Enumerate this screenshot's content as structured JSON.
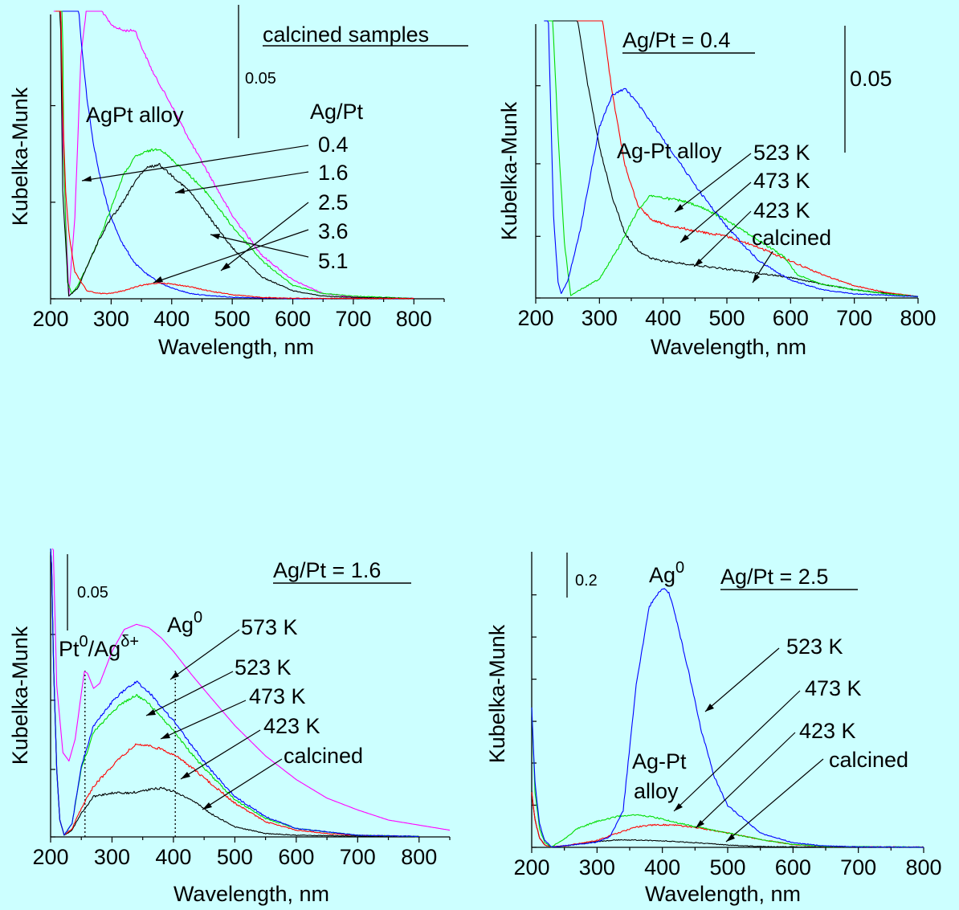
{
  "figure": {
    "background": "#ccffff",
    "series_colors": {
      "black": "#000000",
      "red": "#ff0000",
      "green": "#00dd00",
      "blue": "#0000ff",
      "magenta": "#ff00ff"
    }
  },
  "chart_data": [
    {
      "type": "line",
      "xlabel": "Wavelength, nm",
      "ylabel": "Kubelka-Munk",
      "xlim": [
        200,
        850
      ],
      "xticks": [
        200,
        300,
        400,
        500,
        600,
        700,
        800
      ],
      "y_scale_bar": "0.05",
      "legend_title": "Ag/Pt",
      "annotations": {
        "heading": "calcined samples",
        "feature": "AgPt alloy"
      },
      "series": [
        {
          "name": "0.4",
          "color": "#ff00ff",
          "x": [
            205,
            212,
            220,
            230,
            240,
            250,
            260,
            270,
            280,
            300,
            320,
            340,
            350,
            370,
            400,
            430,
            460,
            500,
            550,
            600,
            650,
            700,
            750,
            800
          ],
          "y": [
            0.3,
            0.19,
            0.06,
            0.001,
            0.03,
            0.09,
            0.11,
            0.112,
            0.109,
            0.102,
            0.1,
            0.1,
            0.094,
            0.084,
            0.072,
            0.059,
            0.047,
            0.031,
            0.016,
            0.007,
            0.002,
            0.0007,
            0.0003,
            0.0001
          ]
        },
        {
          "name": "1.6",
          "color": "#0000ff",
          "x": [
            210,
            220,
            230,
            240,
            250,
            260,
            270,
            280,
            290,
            300,
            320,
            340,
            360,
            380,
            400,
            430,
            460,
            500,
            550,
            600,
            700,
            800
          ],
          "y": [
            0.3,
            0.24,
            0.175,
            0.128,
            0.097,
            0.075,
            0.059,
            0.047,
            0.038,
            0.03,
            0.02,
            0.013,
            0.009,
            0.006,
            0.004,
            0.002,
            0.0012,
            0.0006,
            0.0003,
            0.0001,
            0.0001,
            0.0001
          ]
        },
        {
          "name": "2.5",
          "color": "#00dd00",
          "x": [
            212,
            217,
            222,
            228,
            235,
            245,
            260,
            280,
            300,
            320,
            340,
            360,
            380,
            400,
            430,
            460,
            500,
            550,
            600,
            650,
            700,
            800
          ],
          "y": [
            0.3,
            0.18,
            0.05,
            0.006,
            0.002,
            0.005,
            0.012,
            0.022,
            0.034,
            0.046,
            0.053,
            0.055,
            0.056,
            0.052,
            0.046,
            0.039,
            0.027,
            0.014,
            0.005,
            0.002,
            0.001,
            0.0001
          ]
        },
        {
          "name": "3.6",
          "color": "#000000",
          "x": [
            210,
            215,
            220,
            230,
            245,
            260,
            280,
            300,
            320,
            340,
            360,
            380,
            400,
            430,
            460,
            500,
            550,
            600,
            650,
            700,
            800
          ],
          "y": [
            0.25,
            0.13,
            0.04,
            0.001,
            0.004,
            0.012,
            0.022,
            0.03,
            0.036,
            0.044,
            0.049,
            0.05,
            0.046,
            0.04,
            0.031,
            0.019,
            0.008,
            0.003,
            0.001,
            0.0005,
            0.0001
          ]
        },
        {
          "name": "5.1",
          "color": "#ff0000",
          "x": [
            208,
            212,
            216,
            220,
            225,
            230,
            240,
            260,
            280,
            300,
            320,
            350,
            380,
            400,
            430,
            460,
            500,
            550,
            600,
            700,
            800
          ],
          "y": [
            0.3,
            0.2,
            0.12,
            0.07,
            0.04,
            0.025,
            0.01,
            0.003,
            0.002,
            0.002,
            0.003,
            0.005,
            0.006,
            0.0055,
            0.0045,
            0.003,
            0.0015,
            0.0005,
            0.0002,
            0.0001,
            0.0001
          ]
        }
      ]
    },
    {
      "type": "line",
      "xlabel": "Wavelength, nm",
      "ylabel": "Kubelka-Munk",
      "xlim": [
        200,
        800
      ],
      "xticks": [
        200,
        300,
        400,
        500,
        600,
        700,
        800
      ],
      "y_scale_bar": "0.05",
      "annotations": {
        "heading": "Ag/Pt = 0.4",
        "feature": "Ag-Pt alloy"
      },
      "series": [
        {
          "name": "calcined",
          "color": "#000000",
          "x": [
            220,
            240,
            260,
            280,
            300,
            320,
            340,
            360,
            380,
            400,
            450,
            500,
            550,
            600,
            650,
            700,
            800
          ],
          "y": [
            0.33,
            0.28,
            0.22,
            0.16,
            0.11,
            0.074,
            0.047,
            0.035,
            0.029,
            0.027,
            0.024,
            0.021,
            0.018,
            0.015,
            0.01,
            0.006,
            0.001
          ]
        },
        {
          "name": "423 K",
          "color": "#ff0000",
          "x": [
            265,
            280,
            300,
            320,
            340,
            360,
            380,
            400,
            450,
            500,
            550,
            600,
            650,
            700,
            750,
            800
          ],
          "y": [
            0.33,
            0.285,
            0.22,
            0.15,
            0.097,
            0.068,
            0.058,
            0.054,
            0.049,
            0.045,
            0.037,
            0.027,
            0.017,
            0.009,
            0.004,
            0.001
          ]
        },
        {
          "name": "473 K",
          "color": "#00dd00",
          "x": [
            218,
            225,
            235,
            245,
            255,
            270,
            300,
            330,
            360,
            380,
            400,
            430,
            460,
            500,
            550,
            590,
            610,
            650,
            700,
            750,
            800
          ],
          "y": [
            0.33,
            0.22,
            0.12,
            0.04,
            0.002,
            0.006,
            0.014,
            0.037,
            0.064,
            0.075,
            0.073,
            0.071,
            0.066,
            0.057,
            0.042,
            0.03,
            0.017,
            0.01,
            0.006,
            0.003,
            0.001
          ]
        },
        {
          "name": "523 K",
          "color": "#0000ff",
          "x": [
            213,
            220,
            228,
            235,
            240,
            250,
            270,
            300,
            320,
            340,
            360,
            380,
            400,
            430,
            460,
            500,
            550,
            600,
            650,
            700,
            800
          ],
          "y": [
            0.33,
            0.2,
            0.06,
            0.012,
            0.003,
            0.012,
            0.05,
            0.125,
            0.148,
            0.153,
            0.142,
            0.129,
            0.116,
            0.096,
            0.076,
            0.052,
            0.027,
            0.013,
            0.006,
            0.003,
            0.001
          ]
        }
      ]
    },
    {
      "type": "line",
      "xlabel": "Wavelength, nm",
      "ylabel": "Kubelka-Munk",
      "xlim": [
        200,
        850
      ],
      "xticks": [
        200,
        300,
        400,
        500,
        600,
        700,
        800
      ],
      "y_scale_bar": "0.05",
      "annotations": {
        "heading": "Ag/Pt = 1.6",
        "pt_label": "Pt",
        "pt_sup": "0",
        "slash": "/",
        "ag_delta_label": "Ag",
        "ag_delta_sup": "δ+",
        "ag0_label": "Ag",
        "ag0_sup": "0"
      },
      "reference_lines_x": [
        256,
        403
      ],
      "series": [
        {
          "name": "calcined",
          "color": "#000000",
          "x": [
            200,
            205,
            210,
            215,
            222,
            235,
            250,
            270,
            300,
            330,
            360,
            380,
            400,
            430,
            460,
            500,
            550,
            600,
            700,
            800
          ],
          "y": [
            0.19,
            0.1,
            0.04,
            0.01,
            0.001,
            0.004,
            0.014,
            0.024,
            0.026,
            0.026,
            0.028,
            0.029,
            0.027,
            0.022,
            0.014,
            0.006,
            0.002,
            0.001,
            0.0005,
            0.0002
          ]
        },
        {
          "name": "423 K",
          "color": "#ff0000",
          "x": [
            200,
            205,
            210,
            215,
            222,
            235,
            250,
            270,
            300,
            320,
            340,
            360,
            380,
            400,
            430,
            460,
            500,
            550,
            600,
            650,
            700,
            800
          ],
          "y": [
            0.19,
            0.1,
            0.04,
            0.01,
            0.001,
            0.005,
            0.017,
            0.03,
            0.042,
            0.049,
            0.055,
            0.054,
            0.052,
            0.049,
            0.041,
            0.032,
            0.02,
            0.009,
            0.004,
            0.002,
            0.001,
            0.0003
          ]
        },
        {
          "name": "473 K",
          "color": "#00dd00",
          "x": [
            200,
            205,
            210,
            215,
            222,
            235,
            250,
            270,
            300,
            320,
            340,
            360,
            380,
            400,
            430,
            460,
            500,
            550,
            600,
            650,
            700,
            800
          ],
          "y": [
            0.19,
            0.1,
            0.04,
            0.01,
            0.001,
            0.008,
            0.04,
            0.062,
            0.074,
            0.08,
            0.084,
            0.079,
            0.071,
            0.063,
            0.049,
            0.037,
            0.022,
            0.011,
            0.005,
            0.003,
            0.001,
            0.0003
          ]
        },
        {
          "name": "523 K",
          "color": "#0000ff",
          "x": [
            200,
            205,
            210,
            215,
            222,
            235,
            250,
            270,
            300,
            320,
            340,
            360,
            380,
            400,
            430,
            460,
            500,
            550,
            600,
            650,
            700,
            800
          ],
          "y": [
            0.19,
            0.1,
            0.04,
            0.01,
            0.001,
            0.008,
            0.042,
            0.066,
            0.08,
            0.087,
            0.092,
            0.086,
            0.077,
            0.069,
            0.054,
            0.04,
            0.024,
            0.012,
            0.005,
            0.003,
            0.001,
            0.0003
          ]
        },
        {
          "name": "573 K",
          "color": "#ff00ff",
          "x": [
            203,
            210,
            220,
            230,
            240,
            250,
            255,
            260,
            270,
            280,
            300,
            320,
            340,
            360,
            380,
            400,
            430,
            460,
            500,
            550,
            600,
            650,
            700,
            750,
            800,
            850
          ],
          "y": [
            0.19,
            0.09,
            0.05,
            0.045,
            0.058,
            0.085,
            0.098,
            0.097,
            0.088,
            0.091,
            0.11,
            0.123,
            0.126,
            0.124,
            0.118,
            0.11,
            0.096,
            0.083,
            0.066,
            0.048,
            0.034,
            0.023,
            0.016,
            0.01,
            0.007,
            0.004
          ]
        }
      ]
    },
    {
      "type": "line",
      "xlabel": "Wavelength, nm",
      "ylabel": "Kubelka-Munk",
      "xlim": [
        200,
        800
      ],
      "xticks": [
        200,
        300,
        400,
        500,
        600,
        700,
        800
      ],
      "y_scale_bar": "0.2",
      "annotations": {
        "heading": "Ag/Pt = 2.5",
        "ag0_label": "Ag",
        "ag0_sup": "0",
        "alloy_line1": "Ag-Pt",
        "alloy_line2": "alloy"
      },
      "series": [
        {
          "name": "calcined",
          "color": "#000000",
          "x": [
            200,
            205,
            212,
            220,
            230,
            250,
            300,
            330,
            350,
            380,
            400,
            450,
            500,
            550,
            600,
            800
          ],
          "y": [
            0.12,
            0.06,
            0.02,
            0.005,
            0.001,
            0.003,
            0.012,
            0.016,
            0.016,
            0.015,
            0.014,
            0.01,
            0.005,
            0.002,
            0.001,
            0.0005
          ]
        },
        {
          "name": "423 K",
          "color": "#ff0000",
          "x": [
            200,
            205,
            212,
            220,
            230,
            250,
            300,
            330,
            360,
            390,
            420,
            450,
            500,
            550,
            600,
            650,
            800
          ],
          "y": [
            0.12,
            0.06,
            0.02,
            0.005,
            0.001,
            0.003,
            0.015,
            0.03,
            0.044,
            0.049,
            0.048,
            0.043,
            0.031,
            0.017,
            0.006,
            0.002,
            0.0005
          ]
        },
        {
          "name": "473 K",
          "color": "#00dd00",
          "x": [
            200,
            205,
            212,
            220,
            230,
            250,
            270,
            300,
            320,
            340,
            360,
            380,
            400,
            420,
            450,
            500,
            550,
            600,
            650,
            800
          ],
          "y": [
            0.3,
            0.12,
            0.04,
            0.01,
            0.001,
            0.018,
            0.041,
            0.056,
            0.063,
            0.069,
            0.07,
            0.067,
            0.061,
            0.054,
            0.045,
            0.031,
            0.017,
            0.006,
            0.002,
            0.0005
          ]
        },
        {
          "name": "523 K",
          "color": "#0000ff",
          "x": [
            200,
            205,
            212,
            220,
            230,
            240,
            260,
            300,
            320,
            340,
            360,
            380,
            400,
            410,
            420,
            440,
            460,
            480,
            500,
            550,
            600,
            650,
            700,
            800
          ],
          "y": [
            0.3,
            0.14,
            0.05,
            0.015,
            0.001,
            0.002,
            0.005,
            0.011,
            0.023,
            0.08,
            0.35,
            0.52,
            0.56,
            0.55,
            0.5,
            0.38,
            0.25,
            0.15,
            0.09,
            0.031,
            0.01,
            0.003,
            0.001,
            0.0003
          ]
        }
      ]
    }
  ]
}
